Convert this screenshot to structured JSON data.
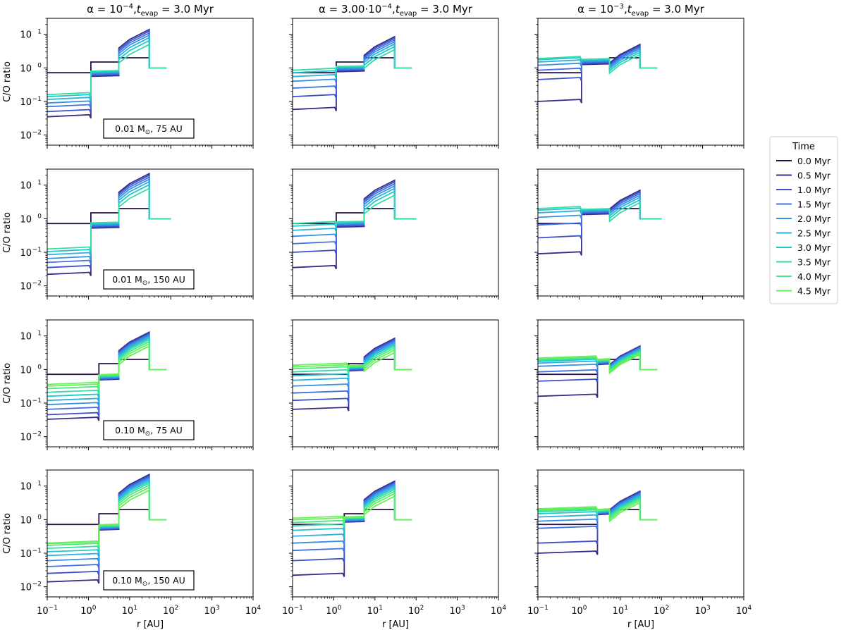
{
  "chart_data": {
    "type": "line",
    "x_scale": "log",
    "y_scale": "log",
    "xlim": [
      0.1,
      10000
    ],
    "ylim": [
      0.005,
      30
    ],
    "x_ticks": [
      0.1,
      1,
      10,
      100,
      1000,
      10000
    ],
    "x_tick_labels": [
      [
        "10",
        "−1"
      ],
      [
        "10",
        "0"
      ],
      [
        "10",
        "1"
      ],
      [
        "10",
        "2"
      ],
      [
        "10",
        "3"
      ],
      [
        "10",
        "4"
      ]
    ],
    "y_ticks": [
      0.01,
      0.1,
      1,
      10
    ],
    "y_tick_labels": [
      [
        "10",
        "−2"
      ],
      [
        "10",
        "−1"
      ],
      [
        "10",
        "0"
      ],
      [
        "10",
        "1"
      ]
    ],
    "xlabel": "r [AU]",
    "ylabel": "C/O ratio",
    "column_titles": [
      {
        "alpha": "α = 10",
        "alpha_exp": "−4",
        "sep": ",",
        "t": "t",
        "t_sub": "evap",
        "value": " = 3.0 Myr"
      },
      {
        "alpha": "α = 3.00·10",
        "alpha_exp": "−4",
        "sep": ",",
        "t": "t",
        "t_sub": "evap",
        "value": " = 3.0 Myr"
      },
      {
        "alpha": "α = 10",
        "alpha_exp": "−3",
        "sep": ",",
        "t": "t",
        "t_sub": "evap",
        "value": " = 3.0 Myr"
      }
    ],
    "row_labels": [
      {
        "mass": "0.01 M",
        "sun": "⊙",
        "radius": ",  75 AU"
      },
      {
        "mass": "0.01 M",
        "sun": "⊙",
        "radius": ", 150 AU"
      },
      {
        "mass": "0.10 M",
        "sun": "⊙",
        "radius": ",  75 AU"
      },
      {
        "mass": "0.10 M",
        "sun": "⊙",
        "radius": ", 150 AU"
      }
    ],
    "legend": {
      "title": "Time",
      "position": "right",
      "entries": [
        {
          "label": "0.0 Myr",
          "color": "#2a0f45"
        },
        {
          "label": "0.5 Myr",
          "color": "#342f86"
        },
        {
          "label": "1.0 Myr",
          "color": "#3d50c8"
        },
        {
          "label": "1.5 Myr",
          "color": "#3f70e5"
        },
        {
          "label": "2.0 Myr",
          "color": "#3890e4"
        },
        {
          "label": "2.5 Myr",
          "color": "#2cb0dd"
        },
        {
          "label": "3.0 Myr",
          "color": "#22c8c8"
        },
        {
          "label": "3.5 Myr",
          "color": "#31dea6"
        },
        {
          "label": "4.0 Myr",
          "color": "#4ae87d"
        },
        {
          "label": "4.5 Myr",
          "color": "#66f05a"
        }
      ]
    },
    "rows": [
      {
        "profile": {
          "inner": 0.72,
          "step2": 1.5,
          "step3": 2.0,
          "outer": 1.0,
          "edge_out": 80
        },
        "panels": [
          {
            "r_ice1": 1.15,
            "r_ice2": 5.5,
            "r_edge": 30,
            "mid": 0.8,
            "post_final": 5.0,
            "peak": 14,
            "inner_curves": [
              0.035,
              0.05,
              0.07,
              0.09,
              0.115,
              0.14,
              0.16
            ]
          },
          {
            "r_ice1": 1.15,
            "r_ice2": 5.5,
            "r_edge": 30,
            "mid": 1.1,
            "post_final": 3.5,
            "peak": 8.5,
            "inner_curves": [
              0.058,
              0.14,
              0.25,
              0.4,
              0.55,
              0.72,
              0.85
            ]
          },
          {
            "r_ice1": 1.15,
            "r_ice2": 5.5,
            "r_edge": 30,
            "mid": 1.8,
            "post_final": 2.5,
            "peak": 5.0,
            "inner_curves": [
              0.1,
              0.45,
              0.85,
              1.2,
              1.5,
              1.75,
              1.9
            ]
          }
        ]
      },
      {
        "profile": {
          "inner": 0.72,
          "step2": 1.5,
          "step3": 2.0,
          "outer": 1.0,
          "edge_out": 100
        },
        "panels": [
          {
            "r_ice1": 1.15,
            "r_ice2": 5.5,
            "r_edge": 30,
            "mid": 0.75,
            "post_final": 8.0,
            "peak": 22,
            "inner_curves": [
              0.022,
              0.035,
              0.05,
              0.065,
              0.085,
              0.105,
              0.125
            ]
          },
          {
            "r_ice1": 1.15,
            "r_ice2": 5.5,
            "r_edge": 30,
            "mid": 0.8,
            "post_final": 5.0,
            "peak": 14,
            "inner_curves": [
              0.035,
              0.1,
              0.18,
              0.3,
              0.45,
              0.6,
              0.72
            ]
          },
          {
            "r_ice1": 1.15,
            "r_ice2": 5.5,
            "r_edge": 30,
            "mid": 1.9,
            "post_final": 3.0,
            "peak": 7.0,
            "inner_curves": [
              0.09,
              0.27,
              0.65,
              1.1,
              1.5,
              1.8,
              2.0
            ]
          }
        ]
      },
      {
        "profile": {
          "inner": 0.72,
          "step2": 1.5,
          "step3": 2.0,
          "outer": 1.0,
          "edge_out": 80
        },
        "panels": [
          {
            "r_ice1": 1.8,
            "r_ice2": 5.5,
            "r_edge": 30,
            "mid": 0.7,
            "post_final": 5.0,
            "peak": 13,
            "inner_curves": [
              0.033,
              0.045,
              0.065,
              0.09,
              0.12,
              0.16,
              0.21,
              0.27,
              0.32,
              0.36
            ]
          },
          {
            "r_ice1": 2.3,
            "r_ice2": 5.5,
            "r_edge": 30,
            "mid": 1.3,
            "post_final": 3.2,
            "peak": 8.5,
            "inner_curves": [
              0.065,
              0.12,
              0.2,
              0.32,
              0.48,
              0.65,
              0.85,
              1.05,
              1.2,
              1.35
            ]
          },
          {
            "r_ice1": 2.8,
            "r_ice2": 5.5,
            "r_edge": 30,
            "mid": 2.0,
            "post_final": 2.8,
            "peak": 5.0,
            "inner_curves": [
              0.16,
              0.45,
              0.85,
              1.25,
              1.55,
              1.75,
              1.9,
              2.0,
              2.1,
              2.2
            ]
          }
        ]
      },
      {
        "profile": {
          "inner": 0.72,
          "step2": 1.5,
          "step3": 2.0,
          "outer": 1.0,
          "edge_out": 80
        },
        "panels": [
          {
            "r_ice1": 1.8,
            "r_ice2": 5.5,
            "r_edge": 30,
            "mid": 0.7,
            "post_final": 7.5,
            "peak": 22,
            "inner_curves": [
              0.014,
              0.025,
              0.04,
              0.06,
              0.085,
              0.11,
              0.14,
              0.17,
              0.19,
              0.2
            ]
          },
          {
            "r_ice1": 1.8,
            "r_ice2": 5.5,
            "r_edge": 30,
            "mid": 1.2,
            "post_final": 5.0,
            "peak": 14,
            "inner_curves": [
              0.022,
              0.06,
              0.12,
              0.2,
              0.32,
              0.48,
              0.65,
              0.82,
              0.98,
              1.1
            ]
          },
          {
            "r_ice1": 2.8,
            "r_ice2": 5.5,
            "r_edge": 30,
            "mid": 2.0,
            "post_final": 3.2,
            "peak": 7.0,
            "inner_curves": [
              0.1,
              0.2,
              0.55,
              0.9,
              1.2,
              1.5,
              1.7,
              1.85,
              2.0,
              2.1
            ]
          }
        ]
      }
    ]
  }
}
